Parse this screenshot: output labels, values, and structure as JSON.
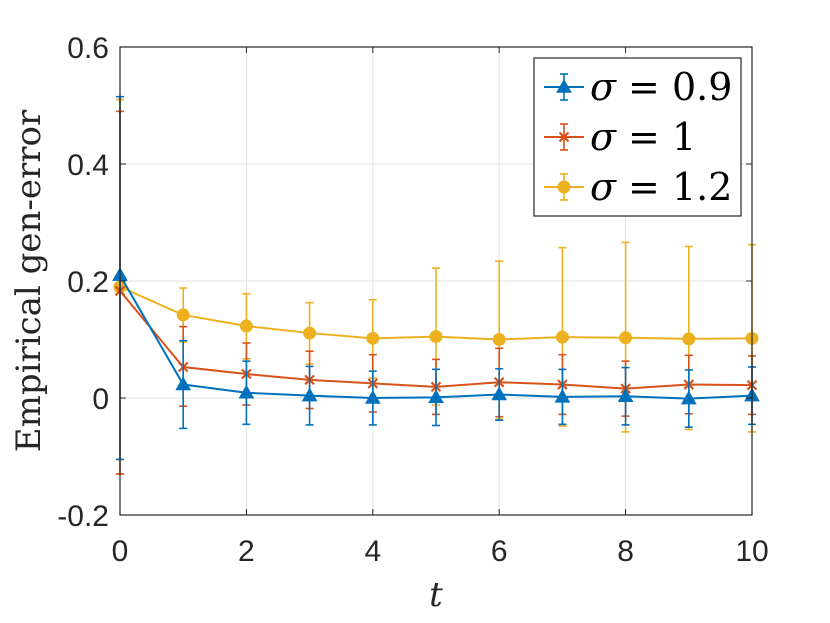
{
  "chart_data": {
    "type": "line",
    "xlabel": "t",
    "ylabel": "Empirical gen-error",
    "xlim": [
      0,
      10
    ],
    "ylim": [
      -0.2,
      0.6
    ],
    "x_ticks": [
      "0",
      "2",
      "4",
      "6",
      "8",
      "10"
    ],
    "y_ticks": [
      "-0.2",
      "0",
      "0.2",
      "0.4",
      "0.6"
    ],
    "grid": true,
    "legend_position": "top-right",
    "x": [
      0,
      1,
      2,
      3,
      4,
      5,
      6,
      7,
      8,
      9,
      10
    ],
    "series": [
      {
        "name": "σ = 0.9",
        "legend_symbol": "σ",
        "legend_rest": " = 0.9",
        "color": "#0072BD",
        "marker": "triangle",
        "values": [
          0.21,
          0.023,
          0.009,
          0.004,
          0.0,
          0.001,
          0.006,
          0.002,
          0.003,
          -0.001,
          0.004
        ],
        "err_low": [
          -0.105,
          -0.052,
          -0.045,
          -0.046,
          -0.046,
          -0.047,
          -0.038,
          -0.045,
          -0.046,
          -0.05,
          -0.045
        ],
        "err_high": [
          0.515,
          0.098,
          0.063,
          0.054,
          0.046,
          0.049,
          0.05,
          0.049,
          0.052,
          0.048,
          0.053
        ]
      },
      {
        "name": "σ = 1",
        "legend_symbol": "σ",
        "legend_rest": " = 1",
        "color": "#D95319",
        "marker": "cross",
        "values": [
          0.183,
          0.053,
          0.041,
          0.031,
          0.025,
          0.019,
          0.027,
          0.023,
          0.016,
          0.023,
          0.022
        ],
        "err_low": [
          -0.13,
          -0.014,
          -0.012,
          -0.018,
          -0.024,
          -0.028,
          -0.032,
          -0.028,
          -0.031,
          -0.027,
          -0.028
        ],
        "err_high": [
          0.49,
          0.122,
          0.094,
          0.08,
          0.074,
          0.066,
          0.085,
          0.074,
          0.063,
          0.073,
          0.072
        ]
      },
      {
        "name": "σ = 1.2",
        "legend_symbol": "σ",
        "legend_rest": " = 1.2",
        "color": "#EDB120",
        "marker": "circle",
        "values": [
          0.19,
          0.142,
          0.123,
          0.111,
          0.102,
          0.105,
          0.1,
          0.104,
          0.103,
          0.101,
          0.102
        ],
        "err_low": [
          -0.13,
          0.096,
          0.067,
          0.058,
          0.034,
          -0.012,
          -0.036,
          -0.048,
          -0.058,
          -0.054,
          -0.058
        ],
        "err_high": [
          0.51,
          0.188,
          0.178,
          0.163,
          0.168,
          0.222,
          0.234,
          0.257,
          0.266,
          0.259,
          0.262
        ]
      }
    ]
  }
}
